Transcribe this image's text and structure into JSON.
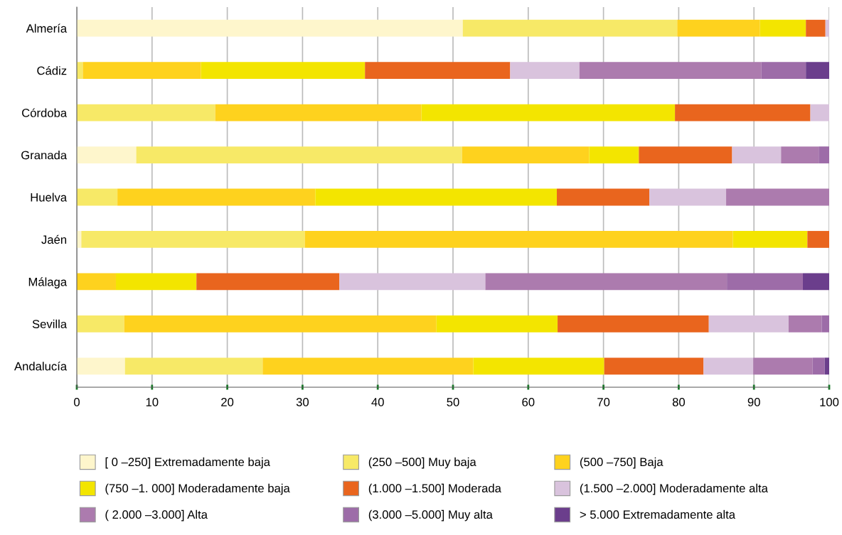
{
  "chart_data": {
    "type": "bar",
    "orientation": "horizontal",
    "stacked": true,
    "categories": [
      "Almería",
      "Cádiz",
      "Córdoba",
      "Granada",
      "Huelva",
      "Jaén",
      "Málaga",
      "Sevilla",
      "Andalucía"
    ],
    "series": [
      {
        "name": "[ 0 –250] Extremadamente baja",
        "color": "#fef6cc",
        "values": [
          51.3,
          0,
          0,
          7.9,
          0,
          0.6,
          0,
          0,
          6.4
        ]
      },
      {
        "name": "(250 –500] Muy baja",
        "color": "#f7e967",
        "values": [
          28.5,
          0.8,
          18.4,
          43.3,
          5.4,
          29.7,
          0,
          6.3,
          18.3
        ]
      },
      {
        "name": "(500 –750] Baja",
        "color": "#fed21e",
        "values": [
          11.0,
          15.7,
          27.4,
          16.9,
          26.3,
          56.9,
          5.2,
          41.5,
          28.0
        ]
      },
      {
        "name": "(750 –1. 000] Moderadamente baja",
        "color": "#f3e500",
        "values": [
          6.1,
          21.8,
          33.7,
          6.6,
          32.1,
          9.9,
          10.7,
          16.1,
          17.4
        ]
      },
      {
        "name": "(1.000 –1.500] Moderada",
        "color": "#e9651e",
        "values": [
          2.6,
          19.3,
          18.0,
          12.4,
          12.3,
          2.9,
          19.0,
          20.1,
          13.2
        ]
      },
      {
        "name": "(1.500 –2.000] Moderadamente alta",
        "color": "#d9c3dd",
        "values": [
          0.5,
          9.2,
          2.5,
          6.5,
          10.2,
          0,
          19.4,
          10.6,
          6.6
        ]
      },
      {
        "name": "( 2.000 –3.000] Alta",
        "color": "#ac7bae",
        "values": [
          0,
          24.2,
          0,
          5.0,
          13.7,
          0,
          32.1,
          4.4,
          7.9
        ]
      },
      {
        "name": "(3.000 –5.000] Muy alta",
        "color": "#9d6ca8",
        "values": [
          0,
          5.9,
          0,
          1.4,
          0,
          0,
          10.1,
          1.0,
          1.6
        ]
      },
      {
        "name": "> 5.000 Extremadamente alta",
        "color": "#6b3e8c",
        "values": [
          0,
          3.1,
          0,
          0,
          0,
          0,
          3.5,
          0,
          0.6
        ]
      }
    ],
    "xlim": [
      0,
      100
    ],
    "xticks": [
      0,
      10,
      20,
      30,
      40,
      50,
      60,
      70,
      80,
      90,
      100
    ],
    "grid": "x",
    "legend": "bottom"
  }
}
